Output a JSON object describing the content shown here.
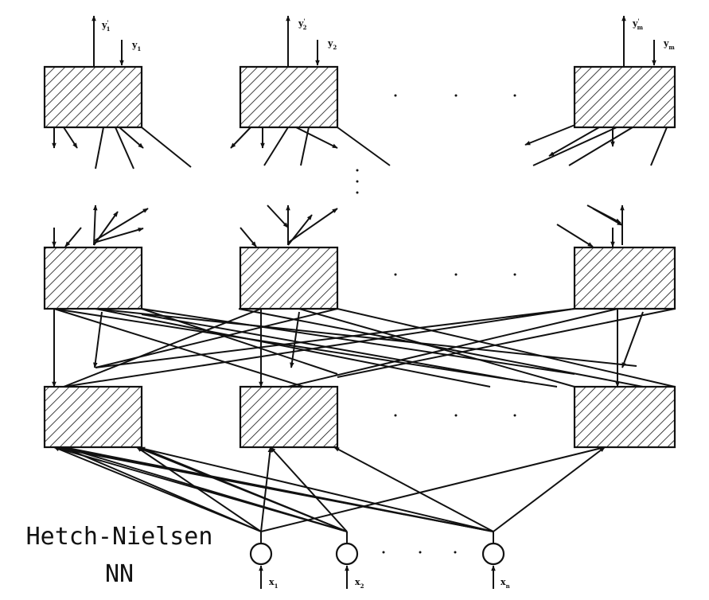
{
  "diagram": {
    "title": "Hetch-Nielsen neural network",
    "output_labels": [
      {
        "name": "output-y1-prime",
        "base": "y",
        "sub": "1",
        "prime": "'"
      },
      {
        "name": "output-y2-prime",
        "base": "y",
        "sub": "2",
        "prime": "'"
      },
      {
        "name": "output-ym-prime",
        "base": "y",
        "sub": "m",
        "prime": "'"
      }
    ],
    "target_labels": [
      {
        "name": "target-y1",
        "base": "y",
        "sub": "1"
      },
      {
        "name": "target-y2",
        "base": "y",
        "sub": "2"
      },
      {
        "name": "target-ym",
        "base": "y",
        "sub": "m"
      }
    ],
    "input_labels": [
      {
        "name": "input-x1",
        "base": "x",
        "sub": "1"
      },
      {
        "name": "input-x2",
        "base": "x",
        "sub": "2"
      },
      {
        "name": "input-xn",
        "base": "x",
        "sub": "n"
      }
    ],
    "layers": [
      "output-layer",
      "hidden-layer",
      "kohonen-layer",
      "input-layer"
    ]
  },
  "caption": {
    "line1": "Hetch-Nielsen",
    "line2": "NN"
  }
}
